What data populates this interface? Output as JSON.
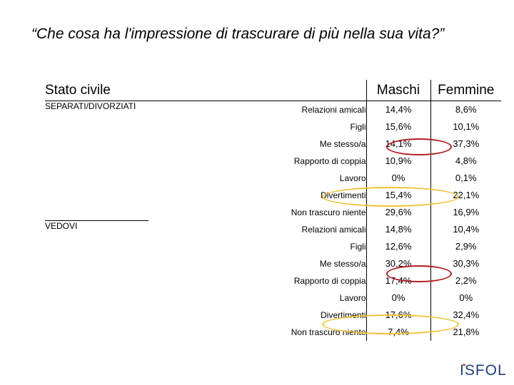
{
  "title": "“Che cosa ha l'impressione di trascurare di più nella sua vita?”",
  "table": {
    "headers": {
      "stato": "Stato civile",
      "maschi": "Maschi",
      "femmine": "Femmine"
    },
    "groups": [
      {
        "label": "SEPARATI/DIVORZIATI",
        "rows": [
          {
            "cat": "Relazioni amicali",
            "m": "14,4%",
            "f": "8,6%"
          },
          {
            "cat": "Figli",
            "m": "15,6%",
            "f": "10,1%"
          },
          {
            "cat": "Me stesso/a",
            "m": "14,1%",
            "f": "37,3%"
          },
          {
            "cat": "Rapporto di coppia",
            "m": "10,9%",
            "f": "4,8%"
          },
          {
            "cat": "Lavoro",
            "m": "0%",
            "f": "0,1%"
          },
          {
            "cat": "Divertimenti",
            "m": "15,4%",
            "f": "22,1%"
          },
          {
            "cat": "Non trascuro niente",
            "m": "29,6%",
            "f": "16,9%"
          }
        ]
      },
      {
        "label": "VEDOVI",
        "rows": [
          {
            "cat": "Relazioni amicali",
            "m": "14,8%",
            "f": "10,4%"
          },
          {
            "cat": "Figli",
            "m": "12,6%",
            "f": "2,9%"
          },
          {
            "cat": "Me stesso/a",
            "m": "30,2%",
            "f": "30,3%"
          },
          {
            "cat": "Rapporto di coppia",
            "m": "17,4%",
            "f": "2,2%"
          },
          {
            "cat": "Lavoro",
            "m": "0%",
            "f": "0%"
          },
          {
            "cat": "Divertimenti",
            "m": "17,6%",
            "f": "32,4%"
          },
          {
            "cat": "Non trascuro niente",
            "m": "7,4%",
            "f": "21,8%"
          }
        ]
      }
    ]
  },
  "highlights": {
    "red": "#b01c22",
    "yellow": "#f1c232"
  },
  "logo": {
    "text": "ISFOL"
  }
}
